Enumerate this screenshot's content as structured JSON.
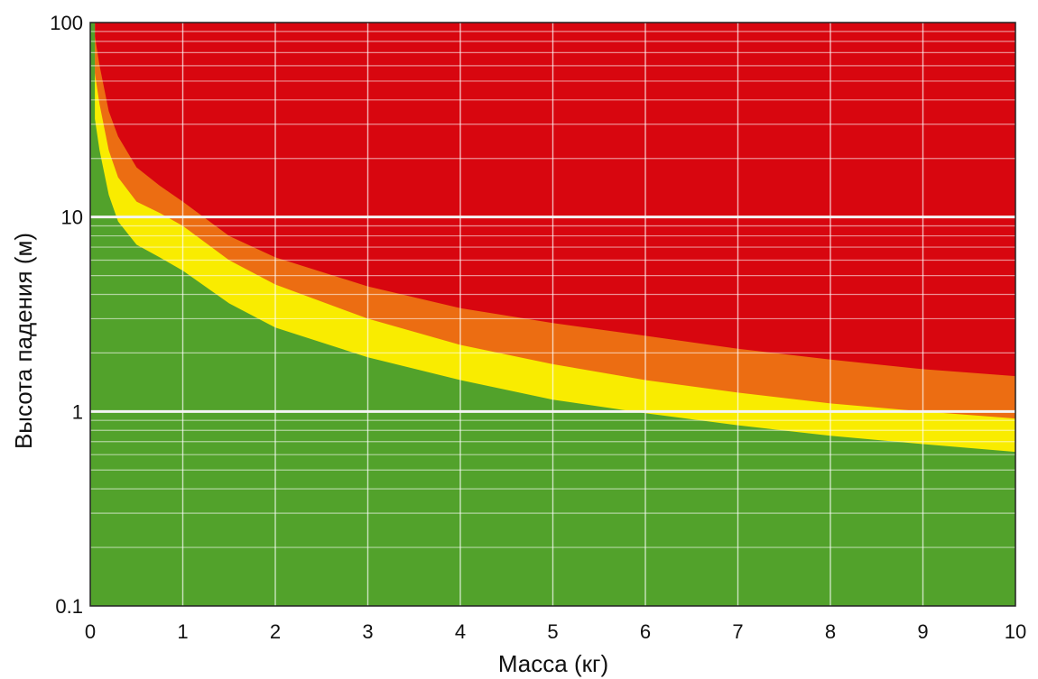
{
  "chart_data": {
    "type": "area",
    "xlabel": "Масса (кг)",
    "ylabel": "Высота падения (м)",
    "xlim": [
      0,
      10
    ],
    "ylim": [
      0.1,
      100
    ],
    "y_scale": "log",
    "grid": true,
    "x_ticks": [
      "0",
      "1",
      "2",
      "3",
      "4",
      "5",
      "6",
      "7",
      "8",
      "9",
      "10"
    ],
    "y_ticks": [
      {
        "value": 100,
        "label": "100"
      },
      {
        "value": 10,
        "label": "10"
      },
      {
        "value": 1,
        "label": "1"
      },
      {
        "value": 0.1,
        "label": "0.1"
      }
    ],
    "x": [
      0.05,
      0.1,
      0.2,
      0.3,
      0.5,
      0.75,
      1,
      1.5,
      2,
      3,
      4,
      5,
      6,
      7,
      8,
      9,
      10
    ],
    "bands": [
      {
        "color": "#52a22b",
        "upper": [
          32,
          22,
          13,
          9.5,
          7.2,
          6.2,
          5.3,
          3.6,
          2.7,
          1.9,
          1.45,
          1.15,
          0.98,
          0.85,
          0.75,
          0.68,
          0.62
        ]
      },
      {
        "color": "#f9ec00",
        "upper": [
          55,
          38,
          22,
          16,
          12,
          10.5,
          9,
          6,
          4.5,
          3.0,
          2.2,
          1.75,
          1.45,
          1.25,
          1.1,
          1.0,
          0.92
        ]
      },
      {
        "color": "#ec6d12",
        "upper": [
          85,
          60,
          35,
          26,
          18,
          14.5,
          12,
          8,
          6.2,
          4.4,
          3.4,
          2.85,
          2.45,
          2.1,
          1.85,
          1.65,
          1.52
        ]
      },
      {
        "color": "#d8060f",
        "upper": [
          100,
          100,
          100,
          100,
          100,
          100,
          100,
          100,
          100,
          100,
          100,
          100,
          100,
          100,
          100,
          100,
          100
        ]
      }
    ]
  }
}
